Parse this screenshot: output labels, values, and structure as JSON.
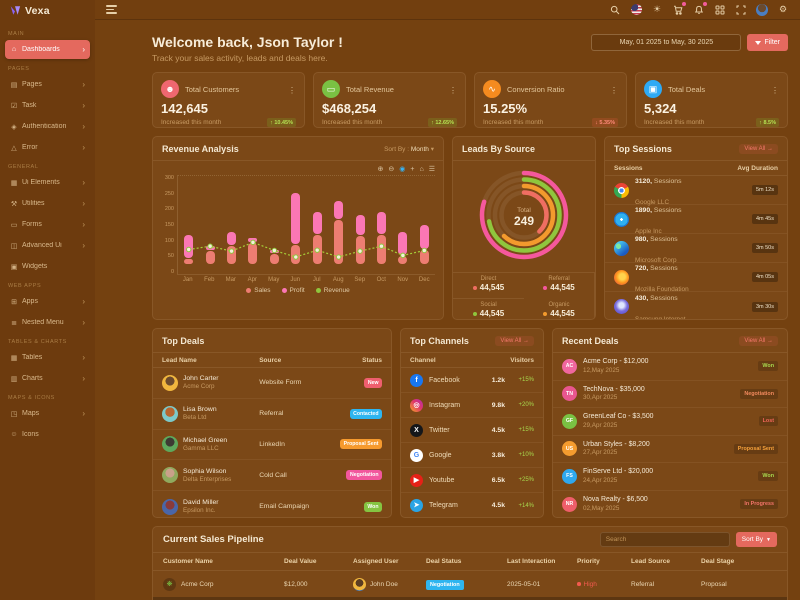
{
  "brand": {
    "name": "Vexa"
  },
  "topbar": {
    "icons": [
      "search",
      "flag-us",
      "theme-sun",
      "cart",
      "bell",
      "apps-grid",
      "fullscreen",
      "avatar",
      "settings-gear"
    ]
  },
  "sidebar": {
    "sections": [
      {
        "label": "MAIN",
        "items": [
          {
            "label": "Dashboards",
            "icon": "home",
            "arrow": true,
            "state": "active"
          }
        ]
      },
      {
        "label": "PAGES",
        "items": [
          {
            "label": "Pages",
            "icon": "file",
            "arrow": true
          },
          {
            "label": "Task",
            "icon": "task",
            "arrow": true
          },
          {
            "label": "Authentication",
            "icon": "lock",
            "arrow": true
          },
          {
            "label": "Error",
            "icon": "alert",
            "arrow": true
          }
        ]
      },
      {
        "label": "GENERAL",
        "items": [
          {
            "label": "Ui Elements",
            "icon": "box",
            "arrow": true
          },
          {
            "label": "Utilities",
            "icon": "tools",
            "arrow": true
          },
          {
            "label": "Forms",
            "icon": "form",
            "arrow": true
          },
          {
            "label": "Advanced Ui",
            "icon": "layers",
            "arrow": true
          },
          {
            "label": "Widgets",
            "icon": "widget",
            "arrow": false
          }
        ]
      },
      {
        "label": "WEB APPS",
        "items": [
          {
            "label": "Apps",
            "icon": "grid",
            "arrow": true
          },
          {
            "label": "Nested Menu",
            "icon": "list",
            "arrow": true
          }
        ]
      },
      {
        "label": "TABLES & CHARTS",
        "items": [
          {
            "label": "Tables",
            "icon": "table",
            "arrow": true
          },
          {
            "label": "Charts",
            "icon": "chart",
            "arrow": true
          }
        ]
      },
      {
        "label": "MAPS & ICONS",
        "items": [
          {
            "label": "Maps",
            "icon": "map",
            "arrow": true
          },
          {
            "label": "Icons",
            "icon": "smile",
            "arrow": false
          }
        ]
      }
    ]
  },
  "welcome": {
    "title": "Welcome back, Json Taylor !",
    "subtitle": "Track your sales activity, leads and deals here.",
    "date_range": "May, 01 2025 to May, 30 2025",
    "filter_label": "Filter"
  },
  "stats": [
    {
      "title": "Total Customers",
      "value": "142,645",
      "note": "Increased this month",
      "badge": "↑ 10.45%",
      "trend": "up",
      "icon": "users",
      "icon_bg": "#ef6770"
    },
    {
      "title": "Total Revenue",
      "value": "$468,254",
      "note": "Increased this month",
      "badge": "↑ 12.65%",
      "trend": "up",
      "icon": "card",
      "icon_bg": "#7ac143"
    },
    {
      "title": "Conversion Ratio",
      "value": "15.25%",
      "note": "Increased this month",
      "badge": "↓ 5.35%",
      "trend": "down",
      "icon": "pulse",
      "icon_bg": "#f58b1f"
    },
    {
      "title": "Total Deals",
      "value": "5,324",
      "note": "Increased this month",
      "badge": "↑ 8.5%",
      "trend": "up",
      "icon": "briefcase",
      "icon_bg": "#2eaaf5"
    }
  ],
  "revenue_analysis": {
    "title": "Revenue Analysis",
    "sort_label": "Sort By :",
    "sort_value": "Month",
    "toolbar_icons": [
      "zoom-in",
      "zoom-out",
      "selection-zoom",
      "panning",
      "reset-home",
      "menu"
    ],
    "legend": [
      {
        "label": "Sales",
        "color": "#ed7d72"
      },
      {
        "label": "Profit",
        "color": "#fb77b4"
      },
      {
        "label": "Revenue",
        "color": "#8fc63d"
      }
    ]
  },
  "chart_data": [
    {
      "name": "revenue_analysis",
      "type": "bar",
      "categories": [
        "Jan",
        "Feb",
        "Mar",
        "Apr",
        "May",
        "Jun",
        "Jul",
        "Aug",
        "Sep",
        "Oct",
        "Nov",
        "Dec"
      ],
      "series": [
        {
          "name": "Sales",
          "base": 30,
          "values": [
            45,
            70,
            85,
            95,
            60,
            90,
            120,
            165,
            115,
            120,
            55,
            75
          ],
          "color": "#ed7d72"
        },
        {
          "name": "Profit",
          "values": [
            120,
            85,
            130,
            110,
            75,
            248,
            190,
            225,
            180,
            190,
            130,
            150
          ],
          "color": "#fb77b4"
        },
        {
          "name": "Revenue",
          "type": "line",
          "values": [
            75,
            85,
            70,
            97,
            72,
            52,
            73,
            52,
            70,
            85,
            57,
            72
          ],
          "color": "#a6ce39"
        }
      ],
      "ylim": [
        0,
        300
      ],
      "yticks": [
        300,
        250,
        200,
        150,
        100,
        50,
        0
      ]
    },
    {
      "name": "leads_by_source",
      "type": "radialBar",
      "center_label": "Total",
      "center_value": 249,
      "segments": [
        {
          "label": "Referral",
          "value": 44545,
          "color": "#f5589d",
          "arc_fraction": 0.8
        },
        {
          "label": "Social",
          "value": 44545,
          "color": "#8fc63d",
          "arc_fraction": 0.72
        },
        {
          "label": "Organic",
          "value": 44545,
          "color": "#f39a2d",
          "arc_fraction": 0.62
        },
        {
          "label": "Direct",
          "value": 44545,
          "color": "#ef6e62",
          "arc_fraction": 0.38
        }
      ]
    }
  ],
  "leads_by_source": {
    "title": "Leads By Source",
    "center_label": "Total",
    "center_value": "249",
    "legend": [
      {
        "label": "Direct",
        "value": "44,545",
        "color": "#ef6e62"
      },
      {
        "label": "Referral",
        "value": "44,545",
        "color": "#f5589d"
      },
      {
        "label": "Social",
        "value": "44,545",
        "color": "#8fc63d"
      },
      {
        "label": "Organic",
        "value": "44,545",
        "color": "#f39a2d"
      }
    ]
  },
  "top_sessions": {
    "title": "Top Sessions",
    "view_all": "View All →",
    "col1": "Sessions",
    "col2": "Avg Duration",
    "rows": [
      {
        "count": "3120,",
        "suffix": "Sessions",
        "company": "Google LLC",
        "duration": "5m 12s",
        "browser": "chrome",
        "icon_bg": "radial-gradient(circle, #4285f4 0 20%, #ffffff 21% 32%, transparent 33%), conic-gradient(from -60deg, #ea4335 0 120deg, #fbbc05 120deg 240deg, #34a853 240deg 360deg)"
      },
      {
        "count": "1890,",
        "suffix": "Sessions",
        "company": "Apple Inc",
        "duration": "4m 45s",
        "browser": "safari",
        "icon_bg": "radial-gradient(circle at 50% 50%, #ffffff 0 12%, #2fb0f0 13% 58%, #1a78d6 59% 100%)"
      },
      {
        "count": "980,",
        "suffix": "Sessions",
        "company": "Microsoft Corp",
        "duration": "3m 50s",
        "browser": "edge",
        "icon_bg": "radial-gradient(circle at 30% 35%, #7ee8a0 0 18%, transparent 19%), linear-gradient(140deg, #45c5f1 20%, #1b5cc2 75%)"
      },
      {
        "count": "720,",
        "suffix": "Sessions",
        "company": "Mozilla Foundation",
        "duration": "4m 05s",
        "browser": "firefox",
        "icon_bg": "radial-gradient(circle at 55% 45%, #ffd34d 0 26%, #ff9a1f 50%, #e8563c 85%)"
      },
      {
        "count": "430,",
        "suffix": "Sessions",
        "company": "Samsung Internet",
        "duration": "3m 30s",
        "browser": "samsung",
        "icon_bg": "radial-gradient(circle at 50% 42%, #dfe6ff 0 22%, #7a6ede 50%, #4f42c8 100%)"
      }
    ]
  },
  "top_deals": {
    "title": "Top Deals",
    "columns": [
      "Lead Name",
      "Source",
      "Status"
    ],
    "rows": [
      {
        "name": "John Carter",
        "company": "Acme Corp",
        "source": "Website Form",
        "status": "New",
        "status_bg": "#ef5f6e",
        "avatar_bg": "radial-gradient(circle at 50% 38%, #6b4a2e 0 34%, #f0b63e 36% 100%)"
      },
      {
        "name": "Lisa Brown",
        "company": "Beta Ltd",
        "source": "Referral",
        "status": "Contacted",
        "status_bg": "#2eb5f0",
        "avatar_bg": "radial-gradient(circle at 50% 38%, #b9652f 0 36%, #7cc9c9 38% 100%)"
      },
      {
        "name": "Michael Green",
        "company": "Gamma LLC",
        "source": "LinkedIn",
        "status": "Proposal Sent",
        "status_bg": "#f69a2e",
        "avatar_bg": "radial-gradient(circle at 50% 38%, #3d3a33 0 34%, #5ea85c 36% 100%)"
      },
      {
        "name": "Sophia Wilson",
        "company": "Delta Enterprises",
        "source": "Cold Call",
        "status": "Negotiation",
        "status_bg": "#f2579d",
        "avatar_bg": "radial-gradient(circle at 50% 38%, #caa08a 0 34%, #90a95e 36% 100%)"
      },
      {
        "name": "David Miller",
        "company": "Epsilon Inc.",
        "source": "Email Campaign",
        "status": "Won",
        "status_bg": "#85c441",
        "avatar_bg": "radial-gradient(circle at 50% 38%, #8a3a3a 0 34%, #4a66a8 36% 100%)"
      }
    ]
  },
  "top_channels": {
    "title": "Top Channels",
    "view_all": "View All →",
    "col1": "Channel",
    "col2": "Visitors",
    "rows": [
      {
        "channel": "Facebook",
        "visitors": "1.2k",
        "growth": "+15%",
        "icon_bg": "#1877f2",
        "glyph": "f"
      },
      {
        "channel": "Instagram",
        "visitors": "9.8k",
        "growth": "+20%",
        "icon_bg": "linear-gradient(45deg, #f5a623, #e0366a 55%, #b42bb4)",
        "glyph": "◎"
      },
      {
        "channel": "Twitter",
        "visitors": "4.5k",
        "growth": "+15%",
        "icon_bg": "#15171a",
        "glyph": "X"
      },
      {
        "channel": "Google",
        "visitors": "3.8k",
        "growth": "+10%",
        "icon_bg": "#ffffff",
        "glyph": "G",
        "glyph_color": "#4285f4"
      },
      {
        "channel": "Youtube",
        "visitors": "6.5k",
        "growth": "+25%",
        "icon_bg": "#e62117",
        "glyph": "▶"
      },
      {
        "channel": "Telegram",
        "visitors": "4.5k",
        "growth": "+14%",
        "icon_bg": "#2aa4e4",
        "glyph": "➤"
      }
    ]
  },
  "recent_deals": {
    "title": "Recent Deals",
    "view_all": "View All →",
    "rows": [
      {
        "initials": "AC",
        "name": "Acme Corp - $12,000",
        "date": "12,May 2025",
        "status": "Won",
        "status_color": "#a8d94e",
        "avatar_bg": "#f0679e"
      },
      {
        "initials": "TN",
        "name": "TechNova - $35,000",
        "date": "30,Apr 2025",
        "status": "Negotiation",
        "status_color": "#f28a5e",
        "avatar_bg": "#e9568f"
      },
      {
        "initials": "GF",
        "name": "GreenLeaf Co - $3,500",
        "date": "29,Apr 2025",
        "status": "Lost",
        "status_color": "#f2665a",
        "avatar_bg": "#7ac143"
      },
      {
        "initials": "US",
        "name": "Urban Styles - $8,200",
        "date": "27,Apr 2025",
        "status": "Proposal Sent",
        "status_color": "#f5a03a",
        "avatar_bg": "#f59c2f"
      },
      {
        "initials": "FS",
        "name": "FinServe Ltd - $20,000",
        "date": "24,Apr 2025",
        "status": "Won",
        "status_color": "#a8d94e",
        "avatar_bg": "#2fa8ee"
      },
      {
        "initials": "NR",
        "name": "Nova Realty - $6,500",
        "date": "02,May 2025",
        "status": "In Progress",
        "status_color": "#f2746a",
        "avatar_bg": "#ef5e6a"
      }
    ]
  },
  "pipeline": {
    "title": "Current Sales Pipeline",
    "search_placeholder": "Search",
    "sort_label": "Sort By",
    "columns": [
      "Customer Name",
      "Deal Value",
      "Assigned User",
      "Deal Status",
      "Last Interaction",
      "Priority",
      "Lead Source",
      "Deal Stage"
    ],
    "rows": [
      {
        "customer": "Acme Corp",
        "deal_value": "$12,000",
        "assigned_user": "John Doe",
        "deal_status": "Negotiation",
        "status_bg": "#2eb5f0",
        "last_interaction": "2025-05-01",
        "priority": "High",
        "priority_color": "#f25a4e",
        "lead_source": "Referral",
        "deal_stage": "Proposal",
        "user_avatar_bg": "radial-gradient(circle at 50% 38%, #5a3c22 0 36%, #f0b63e 38% 70%, #3a77c2 72% 100%)"
      }
    ]
  }
}
